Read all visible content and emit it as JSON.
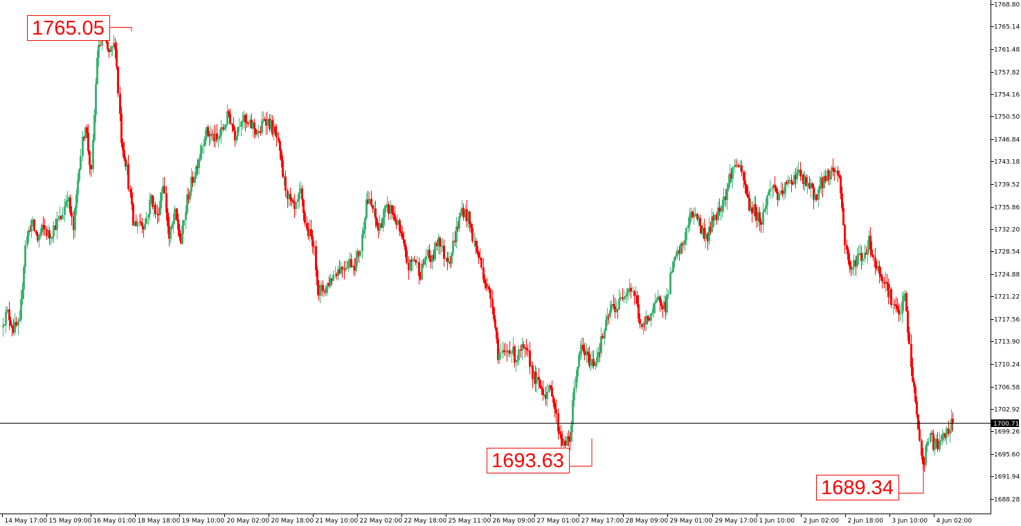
{
  "chart_data": {
    "type": "candlestick",
    "title": "",
    "xlabel": "",
    "ylabel": "",
    "ylim": [
      1686.0,
      1770.0
    ],
    "y_ticks": [
      "1768.80",
      "1765.14",
      "1761.48",
      "1757.82",
      "1754.16",
      "1750.50",
      "1746.84",
      "1743.18",
      "1739.52",
      "1735.86",
      "1732.20",
      "1728.54",
      "1724.88",
      "1721.22",
      "1717.56",
      "1713.90",
      "1710.24",
      "1706.58",
      "1702.92",
      "1699.26",
      "1695.60",
      "1691.94",
      "1688.28"
    ],
    "x_ticks": [
      "14 May 17:00",
      "15 May 09:00",
      "16 May 01:00",
      "18 May 18:00",
      "19 May 10:00",
      "20 May 02:00",
      "20 May 18:00",
      "21 May 10:00",
      "22 May 02:00",
      "22 May 18:00",
      "25 May 11:00",
      "26 May 09:00",
      "27 May 01:00",
      "27 May 17:00",
      "28 May 09:00",
      "29 May 01:00",
      "29 May 17:00",
      "1 Jun 10:00",
      "2 Jun 02:00",
      "2 Jun 18:00",
      "3 Jun 10:00",
      "4 Jun 02:00"
    ],
    "current_price": "1700.71",
    "annotations": [
      {
        "text": "1765.05",
        "value": 1765.05
      },
      {
        "text": "1693.63",
        "value": 1693.63
      },
      {
        "text": "1689.34",
        "value": 1689.34
      }
    ],
    "up_color": "#3cb371",
    "down_color": "#ff0000",
    "price_line_color": "#000000",
    "close_path": [
      1717.0,
      1718.5,
      1716.0,
      1716.5,
      1730.0,
      1733.5,
      1730.5,
      1732.5,
      1731.0,
      1733.0,
      1734.0,
      1738.0,
      1732.0,
      1743.0,
      1749.5,
      1741.0,
      1760.5,
      1764.0,
      1760.5,
      1762.5,
      1747.0,
      1742.0,
      1733.0,
      1733.5,
      1733.0,
      1737.5,
      1734.0,
      1740.0,
      1730.5,
      1734.5,
      1730.0,
      1737.0,
      1740.5,
      1744.0,
      1748.0,
      1747.5,
      1746.5,
      1748.5,
      1751.0,
      1747.5,
      1750.5,
      1749.0,
      1749.0,
      1747.5,
      1750.5,
      1749.0,
      1747.0,
      1741.0,
      1737.0,
      1735.0,
      1738.0,
      1732.0,
      1730.5,
      1722.0,
      1722.5,
      1724.0,
      1725.5,
      1726.0,
      1727.0,
      1726.5,
      1729.0,
      1737.0,
      1735.5,
      1732.0,
      1735.0,
      1735.5,
      1733.5,
      1730.0,
      1726.0,
      1727.5,
      1725.0,
      1728.0,
      1727.0,
      1731.0,
      1728.0,
      1727.5,
      1732.0,
      1735.5,
      1734.0,
      1730.0,
      1727.0,
      1723.0,
      1720.5,
      1712.0,
      1711.5,
      1713.0,
      1711.0,
      1712.5,
      1711.5,
      1708.0,
      1706.5,
      1705.5,
      1706.0,
      1700.0,
      1697.0,
      1698.0,
      1709.0,
      1713.0,
      1711.0,
      1710.5,
      1713.0,
      1716.5,
      1719.5,
      1719.5,
      1722.0,
      1723.0,
      1721.0,
      1715.5,
      1718.0,
      1719.0,
      1721.0,
      1719.5,
      1725.5,
      1728.0,
      1730.0,
      1734.0,
      1735.0,
      1732.0,
      1731.0,
      1734.0,
      1735.5,
      1738.0,
      1741.5,
      1743.0,
      1740.0,
      1736.0,
      1735.0,
      1733.5,
      1737.5,
      1739.5,
      1737.0,
      1739.0,
      1740.0,
      1741.5,
      1740.0,
      1739.0,
      1737.5,
      1739.5,
      1741.0,
      1742.0,
      1741.0,
      1730.0,
      1725.0,
      1728.0,
      1727.5,
      1730.5,
      1726.5,
      1725.0,
      1723.0,
      1720.0,
      1718.0,
      1721.5,
      1710.0,
      1702.0,
      1693.5,
      1698.5,
      1697.0,
      1697.5,
      1699.0,
      1700.71
    ]
  }
}
